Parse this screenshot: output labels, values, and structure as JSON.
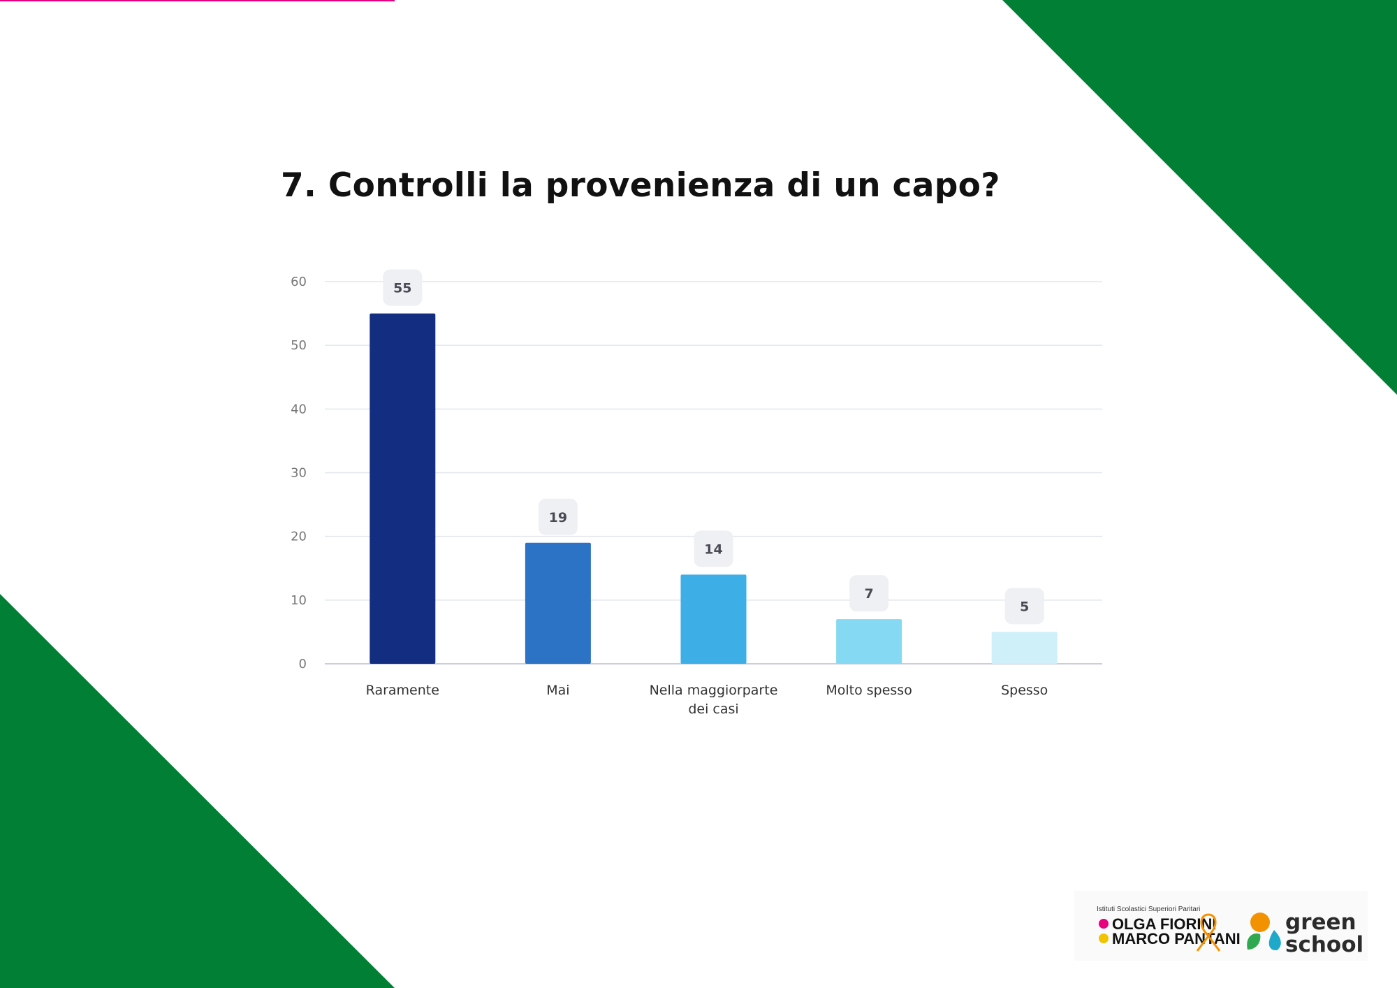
{
  "page": {
    "title": "7. Controlli la provenienza di un capo?",
    "colors": {
      "green": "#007f35",
      "accent_pink": "#e6007e"
    }
  },
  "chart_data": {
    "type": "bar",
    "categories": [
      "Raramente",
      "Mai",
      "Nella maggiorparte dei casi",
      "Molto spesso",
      "Spesso"
    ],
    "category_lines": [
      [
        "Raramente"
      ],
      [
        "Mai"
      ],
      [
        "Nella maggiorparte",
        "dei casi"
      ],
      [
        "Molto spesso"
      ],
      [
        "Spesso"
      ]
    ],
    "values": [
      55,
      19,
      14,
      7,
      5
    ],
    "data_labels": [
      "55",
      "19",
      "14",
      "7",
      "5"
    ],
    "colors": [
      "#132d80",
      "#2c72c5",
      "#3daee6",
      "#85d9f2",
      "#cff0f9"
    ],
    "ylim": [
      0,
      60
    ],
    "yticks": [
      0,
      10,
      20,
      30,
      40,
      50,
      60
    ],
    "grid": true,
    "legend": "none",
    "title": "7. Controlli la provenienza di un capo?"
  },
  "logos": {
    "school_caption": "Istituti Scolastici Superiori Paritari",
    "school_line1": "OLGA FIORINI",
    "school_line2": "MARCO PANTANI",
    "green_school_line1": "green",
    "green_school_line2": "school"
  }
}
